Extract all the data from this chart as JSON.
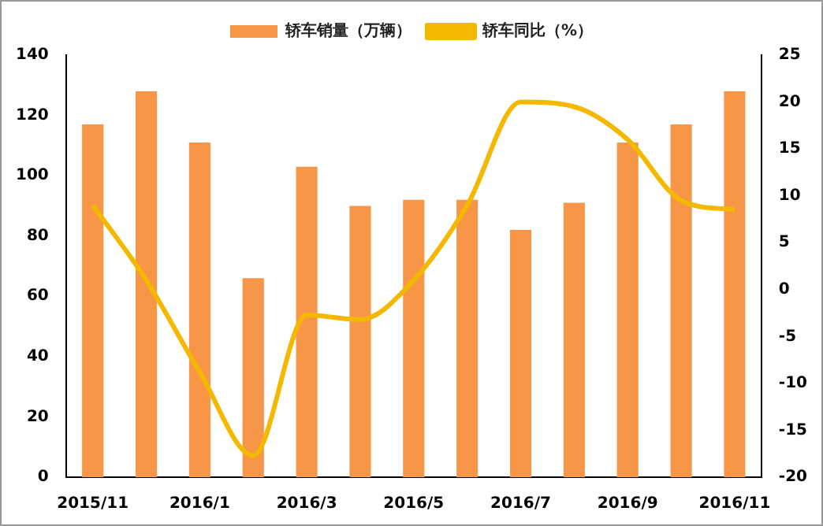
{
  "chart_data": {
    "type": "bar",
    "categories": [
      "2015/11",
      null,
      "2016/1",
      null,
      "2016/3",
      null,
      "2016/5",
      null,
      "2016/7",
      null,
      "2016/9",
      null,
      "2016/11"
    ],
    "series": [
      {
        "name": "轿车销量（万辆）",
        "color": "#f79646",
        "values": [
          117,
          128,
          111,
          66,
          103,
          90,
          92,
          92,
          82,
          91,
          111,
          117,
          128
        ]
      },
      {
        "name": "轿车同比（%）",
        "type": "line",
        "axis": "y2",
        "color": "#f5b800",
        "values": [
          9,
          1,
          -8.8,
          -17.7,
          -2.7,
          -3.2,
          1,
          9,
          20,
          19.5,
          16,
          9.5,
          8.5
        ]
      }
    ],
    "ylim": [
      0,
      140
    ],
    "yticks": [
      0,
      20,
      40,
      60,
      80,
      100,
      120,
      140
    ],
    "y2lim": [
      -20,
      25
    ],
    "y2ticks": [
      -20,
      -15,
      -10,
      -5,
      0,
      5,
      10,
      15,
      20,
      25
    ],
    "legend": "top",
    "grid": false
  }
}
